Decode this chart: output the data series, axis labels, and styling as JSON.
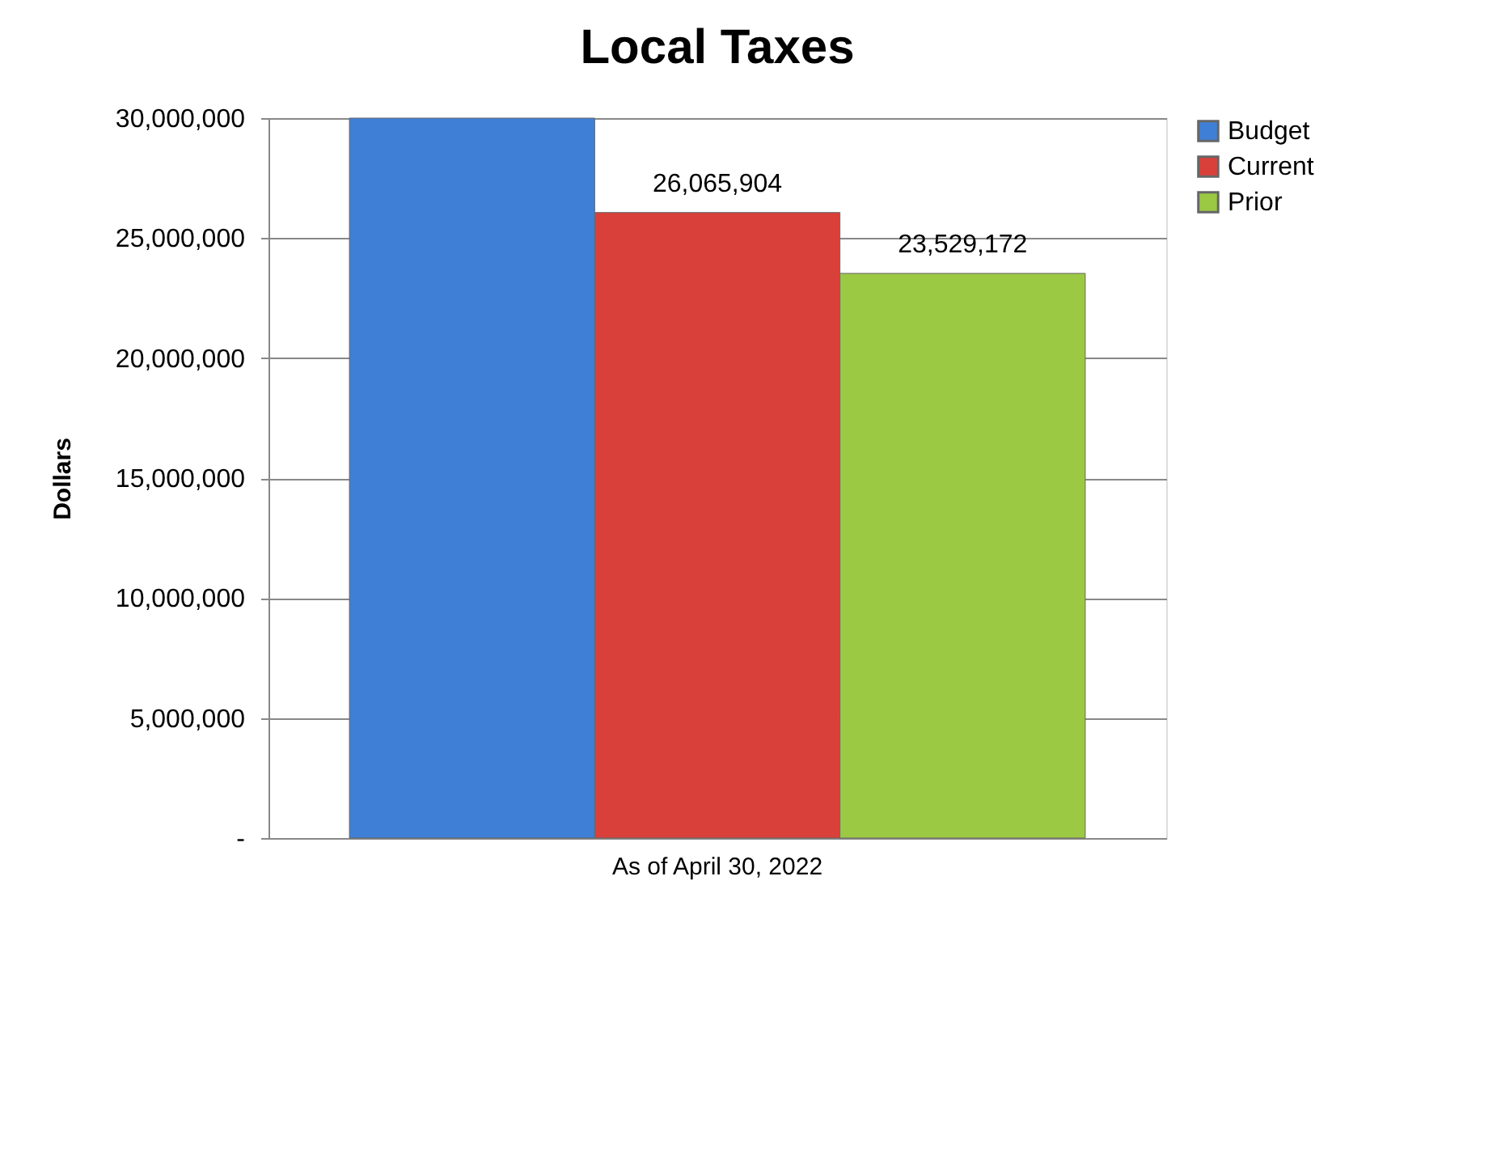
{
  "chart_data": {
    "type": "bar",
    "title": "Local Taxes",
    "ylabel": "Dollars",
    "categories": [
      "As of April 30, 2022"
    ],
    "series": [
      {
        "name": "Budget",
        "color": "#3f7fd6",
        "values": [
          30000000
        ]
      },
      {
        "name": "Current",
        "color": "#d9403a",
        "values": [
          26065904
        ],
        "value_labels": [
          "26,065,904"
        ]
      },
      {
        "name": "Prior",
        "color": "#9cc944",
        "values": [
          23529172
        ],
        "value_labels": [
          "23,529,172"
        ]
      }
    ],
    "ylim": [
      0,
      30000000
    ],
    "yticks": [
      {
        "value": 0,
        "label": "-"
      },
      {
        "value": 5000000,
        "label": "5,000,000"
      },
      {
        "value": 10000000,
        "label": "10,000,000"
      },
      {
        "value": 15000000,
        "label": "15,000,000"
      },
      {
        "value": 20000000,
        "label": "20,000,000"
      },
      {
        "value": 25000000,
        "label": "25,000,000"
      },
      {
        "value": 30000000,
        "label": "30,000,000"
      }
    ],
    "grid": "y",
    "legend": "right"
  }
}
